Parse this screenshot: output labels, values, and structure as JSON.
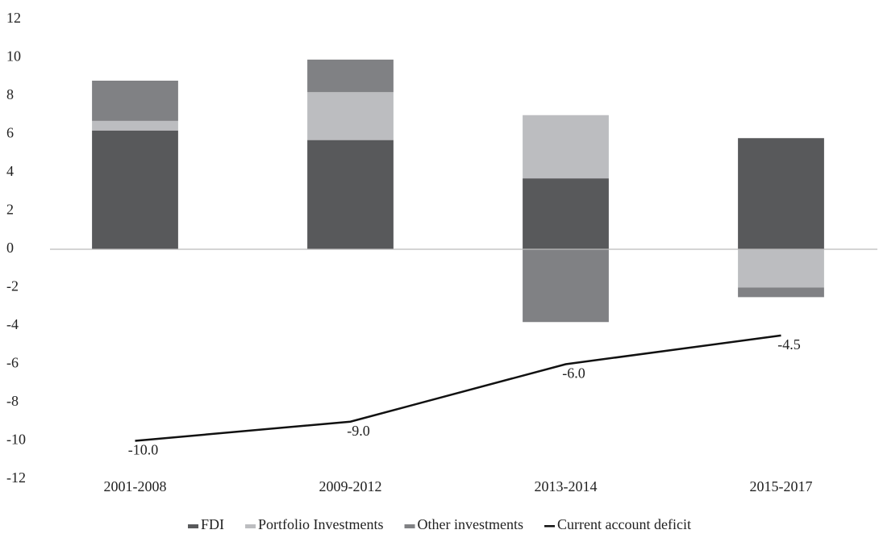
{
  "chart_data": {
    "type": "bar",
    "categories": [
      "2001-2008",
      "2009-2012",
      "2013-2014",
      "2015-2017"
    ],
    "series": [
      {
        "name": "FDI",
        "color": "#58595b",
        "values": [
          6.2,
          5.7,
          3.7,
          5.8
        ]
      },
      {
        "name": "Portfolio Investments",
        "color": "#bcbdc0",
        "values": [
          0.5,
          2.5,
          3.3,
          -2.0
        ]
      },
      {
        "name": "Other investments",
        "color": "#808184",
        "values": [
          2.1,
          1.7,
          -3.8,
          -0.5
        ]
      },
      {
        "name": "Current account deficit",
        "color": "#111111",
        "type": "line",
        "values": [
          -10.0,
          -9.0,
          -6.0,
          -4.5
        ],
        "value_labels": [
          "-10.0",
          "-9.0",
          "-6.0",
          "-4.5"
        ]
      }
    ],
    "ylim": [
      -12,
      12
    ],
    "yticks": [
      -12,
      -10,
      -8,
      -6,
      -4,
      -2,
      0,
      2,
      4,
      6,
      8,
      10,
      12
    ],
    "legend": "bottom"
  }
}
